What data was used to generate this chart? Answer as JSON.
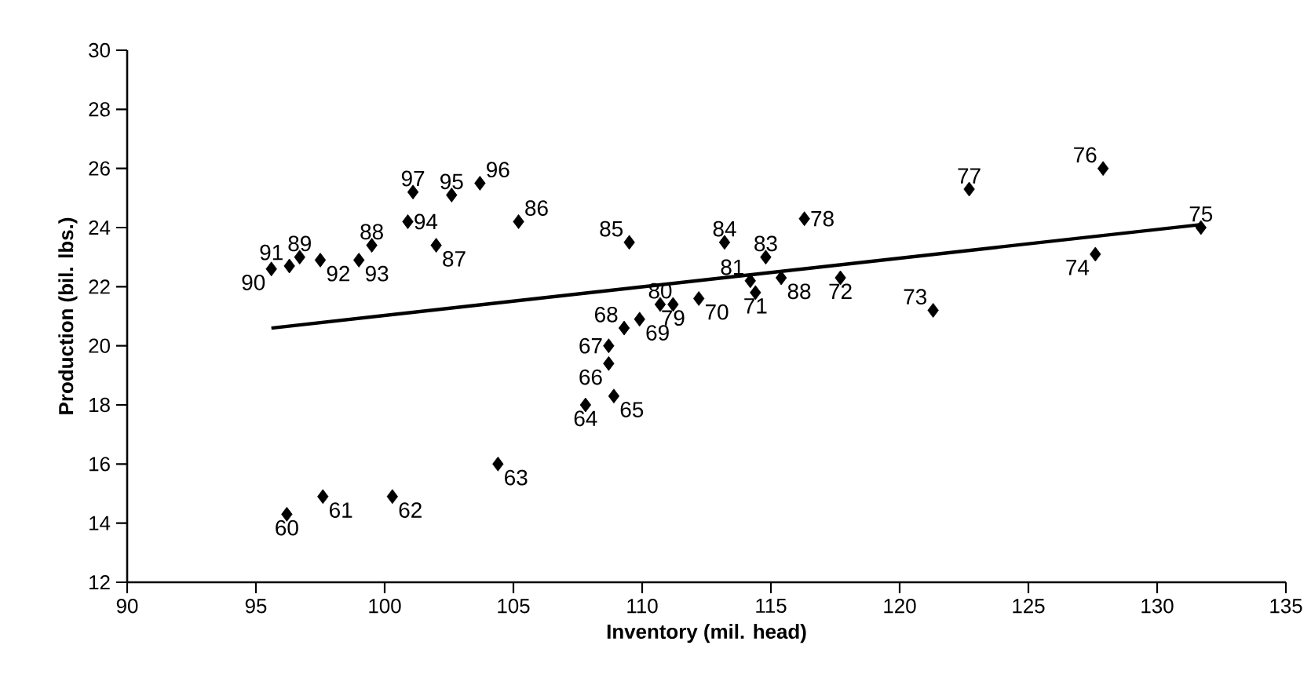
{
  "chart_data": {
    "type": "scatter",
    "xlabel": "Inventory (mil. head)",
    "ylabel": "Production (bil. lbs.)",
    "xlim": [
      90,
      135
    ],
    "ylim": [
      12,
      30
    ],
    "xticks": [
      90,
      95,
      100,
      105,
      110,
      115,
      120,
      125,
      130,
      135
    ],
    "yticks": [
      12,
      14,
      16,
      18,
      20,
      22,
      24,
      26,
      28,
      30
    ],
    "marker": "diamond",
    "series": [
      {
        "color": "#000000",
        "x": [
          96.2,
          97.6,
          100.3,
          104.4,
          107.8,
          108.9,
          108.7,
          108.7,
          109.3,
          109.9,
          112.2,
          114.4,
          117.7,
          121.3,
          127.6,
          131.7,
          127.9,
          122.7,
          116.3,
          111.2,
          110.7,
          114.2,
          114.8,
          113.2,
          109.5,
          105.2,
          102.0,
          99.5,
          115.4,
          96.7,
          95.6,
          96.3,
          97.5,
          99.0,
          100.9,
          102.6,
          103.7,
          101.1
        ],
        "values": [
          14.3,
          14.9,
          14.9,
          16.0,
          18.0,
          18.3,
          19.4,
          20.0,
          20.6,
          20.9,
          21.6,
          21.8,
          22.3,
          21.2,
          23.1,
          24.0,
          26.0,
          25.3,
          24.3,
          21.4,
          21.4,
          22.2,
          23.0,
          23.5,
          23.5,
          24.2,
          23.4,
          23.4,
          22.3,
          23.0,
          22.6,
          22.7,
          22.9,
          22.9,
          24.2,
          25.1,
          25.5,
          25.2
        ]
      },
      {
        "type": "line",
        "color": "#000000",
        "marker": "none",
        "x": [
          95.6,
          131.7
        ],
        "values": [
          20.6,
          24.1
        ]
      }
    ],
    "annotations": [
      {
        "text": "60",
        "x": 96.2,
        "y": 14.3
      },
      {
        "text": "61",
        "x": 97.6,
        "y": 14.9
      },
      {
        "text": "62",
        "x": 100.3,
        "y": 14.9
      },
      {
        "text": "63",
        "x": 104.4,
        "y": 16.0
      },
      {
        "text": "64",
        "x": 107.8,
        "y": 18.0
      },
      {
        "text": "65",
        "x": 108.9,
        "y": 18.3
      },
      {
        "text": "66",
        "x": 108.7,
        "y": 19.4
      },
      {
        "text": "67",
        "x": 108.7,
        "y": 20.0
      },
      {
        "text": "68",
        "x": 109.3,
        "y": 20.6
      },
      {
        "text": "69",
        "x": 109.9,
        "y": 20.9
      },
      {
        "text": "70",
        "x": 112.2,
        "y": 21.6
      },
      {
        "text": "71",
        "x": 114.4,
        "y": 21.8
      },
      {
        "text": "72",
        "x": 117.7,
        "y": 22.3
      },
      {
        "text": "73",
        "x": 121.3,
        "y": 21.2
      },
      {
        "text": "74",
        "x": 127.6,
        "y": 23.1
      },
      {
        "text": "75",
        "x": 131.7,
        "y": 24.0
      },
      {
        "text": "76",
        "x": 127.9,
        "y": 26.0
      },
      {
        "text": "77",
        "x": 122.7,
        "y": 25.3
      },
      {
        "text": "78",
        "x": 116.3,
        "y": 24.3
      },
      {
        "text": "79",
        "x": 111.2,
        "y": 21.4
      },
      {
        "text": "80",
        "x": 110.7,
        "y": 21.4
      },
      {
        "text": "81",
        "x": 114.2,
        "y": 22.2
      },
      {
        "text": "83",
        "x": 114.8,
        "y": 23.0
      },
      {
        "text": "84",
        "x": 113.2,
        "y": 23.5
      },
      {
        "text": "85",
        "x": 109.5,
        "y": 23.5
      },
      {
        "text": "86",
        "x": 105.2,
        "y": 24.2
      },
      {
        "text": "87",
        "x": 102.0,
        "y": 23.4
      },
      {
        "text": "88",
        "x": 99.5,
        "y": 23.4
      },
      {
        "text": "88",
        "x": 115.4,
        "y": 22.3
      },
      {
        "text": "89",
        "x": 96.7,
        "y": 23.0
      },
      {
        "text": "90",
        "x": 95.6,
        "y": 22.6
      },
      {
        "text": "91",
        "x": 96.3,
        "y": 22.7
      },
      {
        "text": "92",
        "x": 97.5,
        "y": 22.9
      },
      {
        "text": "93",
        "x": 99.0,
        "y": 22.9
      },
      {
        "text": "94",
        "x": 100.9,
        "y": 24.2
      },
      {
        "text": "95",
        "x": 102.6,
        "y": 25.1
      },
      {
        "text": "96",
        "x": 103.7,
        "y": 25.5
      },
      {
        "text": "97",
        "x": 101.1,
        "y": 25.2
      }
    ]
  }
}
